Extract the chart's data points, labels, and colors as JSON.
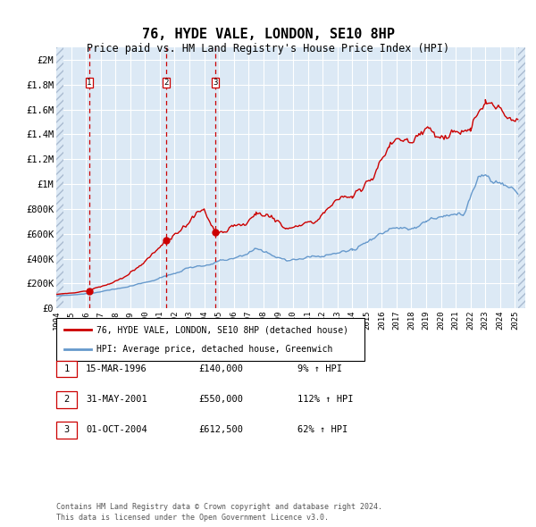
{
  "title": "76, HYDE VALE, LONDON, SE10 8HP",
  "subtitle": "Price paid vs. HM Land Registry's House Price Index (HPI)",
  "title_fontsize": 11,
  "subtitle_fontsize": 8.5,
  "bg_color": "#dce9f5",
  "grid_color": "#ffffff",
  "red_line_color": "#cc0000",
  "blue_line_color": "#6699cc",
  "sale_marker_color": "#cc0000",
  "vline_color": "#cc0000",
  "ytick_values": [
    0,
    200000,
    400000,
    600000,
    800000,
    1000000,
    1200000,
    1400000,
    1600000,
    1800000,
    2000000
  ],
  "ylim": [
    0,
    2100000
  ],
  "xlim_start": 1994.0,
  "xlim_end": 2025.7,
  "xtick_years": [
    1994,
    1995,
    1996,
    1997,
    1998,
    1999,
    2000,
    2001,
    2002,
    2003,
    2004,
    2005,
    2006,
    2007,
    2008,
    2009,
    2010,
    2011,
    2012,
    2013,
    2014,
    2015,
    2016,
    2017,
    2018,
    2019,
    2020,
    2021,
    2022,
    2023,
    2024,
    2025
  ],
  "sales": [
    {
      "year": 1996.21,
      "price": 140000,
      "label": "1",
      "hpi_pct": "9%",
      "date_str": "15-MAR-1996",
      "price_str": "£140,000"
    },
    {
      "year": 2001.42,
      "price": 550000,
      "label": "2",
      "hpi_pct": "112%",
      "date_str": "31-MAY-2001",
      "price_str": "£550,000"
    },
    {
      "year": 2004.75,
      "price": 612500,
      "label": "3",
      "hpi_pct": "62%",
      "date_str": "01-OCT-2004",
      "price_str": "£612,500"
    }
  ],
  "legend_label_red": "76, HYDE VALE, LONDON, SE10 8HP (detached house)",
  "legend_label_blue": "HPI: Average price, detached house, Greenwich",
  "footer_line1": "Contains HM Land Registry data © Crown copyright and database right 2024.",
  "footer_line2": "This data is licensed under the Open Government Licence v3.0.",
  "hatch_left_end": 1994.5,
  "hatch_right_start": 2025.2
}
